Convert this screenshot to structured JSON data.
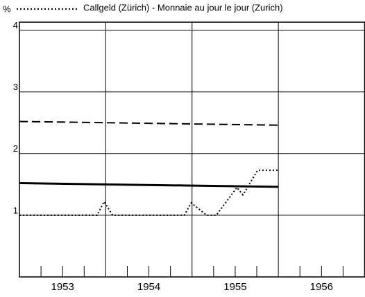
{
  "chart_data": {
    "type": "line",
    "y_label": "%",
    "xlim": [
      1953,
      1957
    ],
    "ylim": [
      0,
      4.13
    ],
    "yticks": [
      1,
      2,
      3,
      4
    ],
    "xticks": [
      {
        "value": 1953.5,
        "label": "1953"
      },
      {
        "value": 1954.5,
        "label": "1954"
      },
      {
        "value": 1955.5,
        "label": "1955"
      },
      {
        "value": 1956.5,
        "label": "1956"
      }
    ],
    "xgrid": [
      1954,
      1955,
      1956
    ],
    "xminorticks": [
      1953.25,
      1953.5,
      1953.75,
      1954.25,
      1954.5,
      1954.75,
      1955.25,
      1955.5,
      1955.75,
      1956.25,
      1956.5,
      1956.75
    ],
    "grid": true,
    "legend": "top",
    "series": [
      {
        "name": "Callgeld (Zürich) - Monnaie au jour le jour (Zurich)",
        "color": "#000000",
        "style": "dotted",
        "x": [
          1953,
          1953.9,
          1953.98,
          1954.08,
          1954.91,
          1954.99,
          1955.17,
          1955.28,
          1955.52,
          1955.59,
          1955.76,
          1956
        ],
        "values": [
          1.0,
          1.0,
          1.22,
          1.0,
          1.0,
          1.2,
          1.0,
          1.0,
          1.45,
          1.33,
          1.73,
          1.73
        ]
      },
      {
        "color": "#000000",
        "style": "dashed",
        "x": [
          1953,
          1956
        ],
        "values": [
          2.52,
          2.46
        ]
      },
      {
        "color": "#000000",
        "style": "solid",
        "x": [
          1953,
          1956
        ],
        "values": [
          1.52,
          1.46
        ]
      }
    ]
  }
}
